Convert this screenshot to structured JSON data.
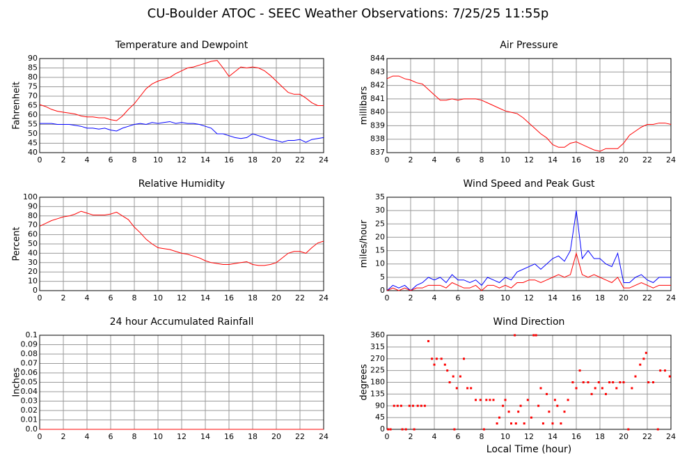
{
  "title": "CU-Boulder ATOC - SEEC Weather Observations: 7/25/25 11:55p",
  "chart_data": [
    {
      "type": "line",
      "title": "Temperature and Dewpoint",
      "ylabel": "Fahrenheit",
      "x": [
        0,
        0.5,
        1,
        1.5,
        2,
        2.5,
        3,
        3.5,
        4,
        4.5,
        5,
        5.5,
        6,
        6.5,
        7,
        7.5,
        8,
        8.5,
        9,
        9.5,
        10,
        10.5,
        11,
        11.5,
        12,
        12.5,
        13,
        13.5,
        14,
        14.5,
        15,
        15.5,
        16,
        16.5,
        17,
        17.5,
        18,
        18.5,
        19,
        19.5,
        20,
        20.5,
        21,
        21.5,
        22,
        22.5,
        23,
        23.5,
        24
      ],
      "series": [
        {
          "color": "#ff0000",
          "values": [
            65.5,
            64.5,
            63,
            62,
            61.5,
            61,
            60.5,
            59.5,
            59,
            59,
            58.5,
            58.5,
            57.5,
            57,
            59.5,
            63,
            66,
            70,
            74,
            76.5,
            78,
            79,
            80,
            82,
            83.5,
            85,
            85.5,
            86.5,
            87.5,
            88.5,
            89,
            85,
            80.5,
            83,
            85.5,
            85,
            85.5,
            85,
            83.5,
            81,
            78,
            75,
            72,
            71,
            71,
            69,
            66.5,
            65,
            65
          ]
        },
        {
          "color": "#0000ff",
          "values": [
            55.5,
            55.5,
            55.5,
            55,
            55,
            55,
            54.5,
            54,
            53,
            53,
            52.5,
            53,
            52,
            51.5,
            53,
            54,
            55,
            55.5,
            55,
            56,
            55.5,
            56,
            56.5,
            55.5,
            56,
            55.5,
            55.5,
            55,
            54,
            53,
            50,
            50,
            49,
            48,
            47.5,
            48,
            50,
            49,
            48,
            47,
            46.5,
            45.5,
            46.5,
            46.5,
            47,
            45.5,
            47,
            47.5,
            48
          ]
        }
      ],
      "xlim": [
        0,
        24
      ],
      "xticks": [
        0,
        2,
        4,
        6,
        8,
        10,
        12,
        14,
        16,
        18,
        20,
        22,
        24
      ],
      "ylim": [
        40,
        90
      ],
      "yticks": [
        40,
        45,
        50,
        55,
        60,
        65,
        70,
        75,
        80,
        85,
        90
      ],
      "grid": true
    },
    {
      "type": "line",
      "title": "Air Pressure",
      "ylabel": "millibars",
      "x": [
        0,
        0.5,
        1,
        1.5,
        2,
        2.5,
        3,
        3.5,
        4,
        4.5,
        5,
        5.5,
        6,
        6.5,
        7,
        7.5,
        8,
        8.5,
        9,
        9.5,
        10,
        10.5,
        11,
        11.5,
        12,
        12.5,
        13,
        13.5,
        14,
        14.5,
        15,
        15.5,
        16,
        16.5,
        17,
        17.5,
        18,
        18.5,
        19,
        19.5,
        20,
        20.5,
        21,
        21.5,
        22,
        22.5,
        23,
        23.5,
        24
      ],
      "series": [
        {
          "color": "#ff0000",
          "values": [
            842.5,
            842.7,
            842.7,
            842.5,
            842.4,
            842.2,
            842.1,
            841.7,
            841.3,
            840.9,
            840.9,
            841,
            840.9,
            841,
            841,
            841,
            840.9,
            840.7,
            840.5,
            840.3,
            840.1,
            840,
            839.9,
            839.6,
            839.2,
            838.8,
            838.4,
            838.1,
            837.6,
            837.4,
            837.4,
            837.7,
            837.8,
            837.6,
            837.4,
            837.2,
            837.1,
            837.3,
            837.3,
            837.3,
            837.7,
            838.3,
            838.6,
            838.9,
            839.1,
            839.1,
            839.2,
            839.2,
            839.1
          ]
        }
      ],
      "xlim": [
        0,
        24
      ],
      "xticks": [
        0,
        2,
        4,
        6,
        8,
        10,
        12,
        14,
        16,
        18,
        20,
        22,
        24
      ],
      "ylim": [
        837,
        844
      ],
      "yticks": [
        837,
        838,
        839,
        840,
        841,
        842,
        843,
        844
      ],
      "grid": true
    },
    {
      "type": "line",
      "title": "Relative Humidity",
      "ylabel": "Percent",
      "x": [
        0,
        0.5,
        1,
        1.5,
        2,
        2.5,
        3,
        3.5,
        4,
        4.5,
        5,
        5.5,
        6,
        6.5,
        7,
        7.5,
        8,
        8.5,
        9,
        9.5,
        10,
        10.5,
        11,
        11.5,
        12,
        12.5,
        13,
        13.5,
        14,
        14.5,
        15,
        15.5,
        16,
        16.5,
        17,
        17.5,
        18,
        18.5,
        19,
        19.5,
        20,
        20.5,
        21,
        21.5,
        22,
        22.5,
        23,
        23.5,
        24
      ],
      "series": [
        {
          "color": "#ff0000",
          "values": [
            69,
            72,
            75,
            77,
            79,
            80,
            82,
            85,
            83,
            81,
            81,
            81,
            82,
            84,
            80,
            76,
            68,
            62,
            55,
            50,
            46,
            45,
            44,
            42,
            40,
            39,
            37,
            35,
            32,
            30,
            29,
            28,
            28,
            29,
            30,
            31,
            28,
            27,
            27,
            28,
            30,
            35,
            40,
            42,
            42,
            40,
            46,
            51,
            53
          ]
        }
      ],
      "xlim": [
        0,
        24
      ],
      "xticks": [
        0,
        2,
        4,
        6,
        8,
        10,
        12,
        14,
        16,
        18,
        20,
        22,
        24
      ],
      "ylim": [
        0,
        100
      ],
      "yticks": [
        0,
        10,
        20,
        30,
        40,
        50,
        60,
        70,
        80,
        90,
        100
      ],
      "grid": true
    },
    {
      "type": "line",
      "title": "Wind Speed and Peak Gust",
      "ylabel": "miles/hour",
      "x": [
        0,
        0.5,
        1,
        1.5,
        2,
        2.5,
        3,
        3.5,
        4,
        4.5,
        5,
        5.5,
        6,
        6.5,
        7,
        7.5,
        8,
        8.5,
        9,
        9.5,
        10,
        10.5,
        11,
        11.5,
        12,
        12.5,
        13,
        13.5,
        14,
        14.5,
        15,
        15.5,
        16,
        16.5,
        17,
        17.5,
        18,
        18.5,
        19,
        19.5,
        20,
        20.5,
        21,
        21.5,
        22,
        22.5,
        23,
        23.5,
        24
      ],
      "series": [
        {
          "color": "#0000ff",
          "values": [
            0,
            2,
            1,
            2,
            0,
            2,
            3,
            5,
            4,
            5,
            3,
            6,
            4,
            4,
            3,
            4,
            2,
            5,
            4,
            3,
            5,
            4,
            7,
            8,
            9,
            10,
            8,
            10,
            12,
            13,
            11,
            15,
            30,
            12,
            15,
            12,
            12,
            10,
            9,
            14,
            3,
            3,
            5,
            6,
            4,
            3,
            5,
            5,
            5
          ]
        },
        {
          "color": "#ff0000",
          "values": [
            0,
            1,
            0,
            1,
            0,
            1,
            1,
            2,
            2,
            2,
            1,
            3,
            2,
            1,
            1,
            2,
            0,
            2,
            2,
            1,
            2,
            1,
            3,
            3,
            4,
            4,
            3,
            4,
            5,
            6,
            5,
            6,
            14,
            6,
            5,
            6,
            5,
            4,
            3,
            5,
            1,
            1,
            2,
            3,
            2,
            1,
            2,
            2,
            2
          ]
        }
      ],
      "xlim": [
        0,
        24
      ],
      "xticks": [
        0,
        2,
        4,
        6,
        8,
        10,
        12,
        14,
        16,
        18,
        20,
        22,
        24
      ],
      "ylim": [
        0,
        35
      ],
      "yticks": [
        0,
        5,
        10,
        15,
        20,
        25,
        30,
        35
      ],
      "grid": true
    },
    {
      "type": "line",
      "title": "24 hour Accumulated Rainfall",
      "ylabel": "Inches",
      "x": [
        0,
        24
      ],
      "series": [
        {
          "color": "#ff0000",
          "values": [
            0,
            0
          ]
        }
      ],
      "xlim": [
        0,
        24
      ],
      "xticks": [
        0,
        2,
        4,
        6,
        8,
        10,
        12,
        14,
        16,
        18,
        20,
        22,
        24
      ],
      "ylim": [
        0,
        0.1
      ],
      "yticks": [
        {
          "value": 0,
          "label": "0.0"
        },
        0.01,
        0.02,
        0.03,
        0.04,
        0.05,
        0.06,
        0.07,
        0.08,
        0.09,
        0.1
      ],
      "grid": true
    },
    {
      "type": "scatter",
      "title": "Wind Direction",
      "ylabel": "degrees",
      "xlabel": "Local Time (hour)",
      "color": "#ff0000",
      "x": [
        0.1,
        0.3,
        0.6,
        0.9,
        1.2,
        1.3,
        1.6,
        1.9,
        2.2,
        2.3,
        2.6,
        2.9,
        3.2,
        3.5,
        3.8,
        4.0,
        4.2,
        4.6,
        4.9,
        5.1,
        5.3,
        5.6,
        5.7,
        5.9,
        6.2,
        6.5,
        6.8,
        7.1,
        7.5,
        7.9,
        8.2,
        8.4,
        8.7,
        9.0,
        9.3,
        9.5,
        9.8,
        10.0,
        10.3,
        10.5,
        10.8,
        10.9,
        11.1,
        11.3,
        11.6,
        11.9,
        12.2,
        12.4,
        12.6,
        12.8,
        13.0,
        13.2,
        13.5,
        13.7,
        14.0,
        14.2,
        14.4,
        14.7,
        15.0,
        15.3,
        15.7,
        16.0,
        16.3,
        16.6,
        17.0,
        17.3,
        17.6,
        17.9,
        18.2,
        18.5,
        18.8,
        19.1,
        19.4,
        19.7,
        20.0,
        20.4,
        20.7,
        21.0,
        21.4,
        21.7,
        21.9,
        22.1,
        22.5,
        22.9,
        23.1,
        23.5,
        23.9
      ],
      "values": [
        0,
        0,
        90,
        90,
        90,
        0,
        0,
        90,
        90,
        0,
        90,
        90,
        90,
        337.5,
        270,
        247.5,
        270,
        270,
        247.5,
        225,
        180,
        202.5,
        0,
        157.5,
        202.5,
        270,
        157.5,
        157.5,
        112.5,
        112.5,
        0,
        112.5,
        112.5,
        112.5,
        22.5,
        45,
        90,
        112.5,
        67.5,
        22.5,
        360,
        22.5,
        67.5,
        90,
        22.5,
        112.5,
        45,
        360,
        360,
        90,
        157.5,
        22.5,
        135,
        67.5,
        22.5,
        112.5,
        90,
        22.5,
        67.5,
        112.5,
        180,
        157.5,
        225,
        180,
        180,
        135,
        157.5,
        180,
        157.5,
        135,
        180,
        180,
        157.5,
        180,
        180,
        0,
        157.5,
        202.5,
        247.5,
        270,
        292.5,
        180,
        180,
        0,
        225,
        225,
        202.5
      ],
      "xlim": [
        0,
        24
      ],
      "xticks": [
        0,
        2,
        4,
        6,
        8,
        10,
        12,
        14,
        16,
        18,
        20,
        22,
        24
      ],
      "ylim": [
        0,
        360
      ],
      "yticks": [
        0,
        45,
        90,
        135,
        180,
        225,
        270,
        315,
        360
      ],
      "grid": true
    }
  ]
}
